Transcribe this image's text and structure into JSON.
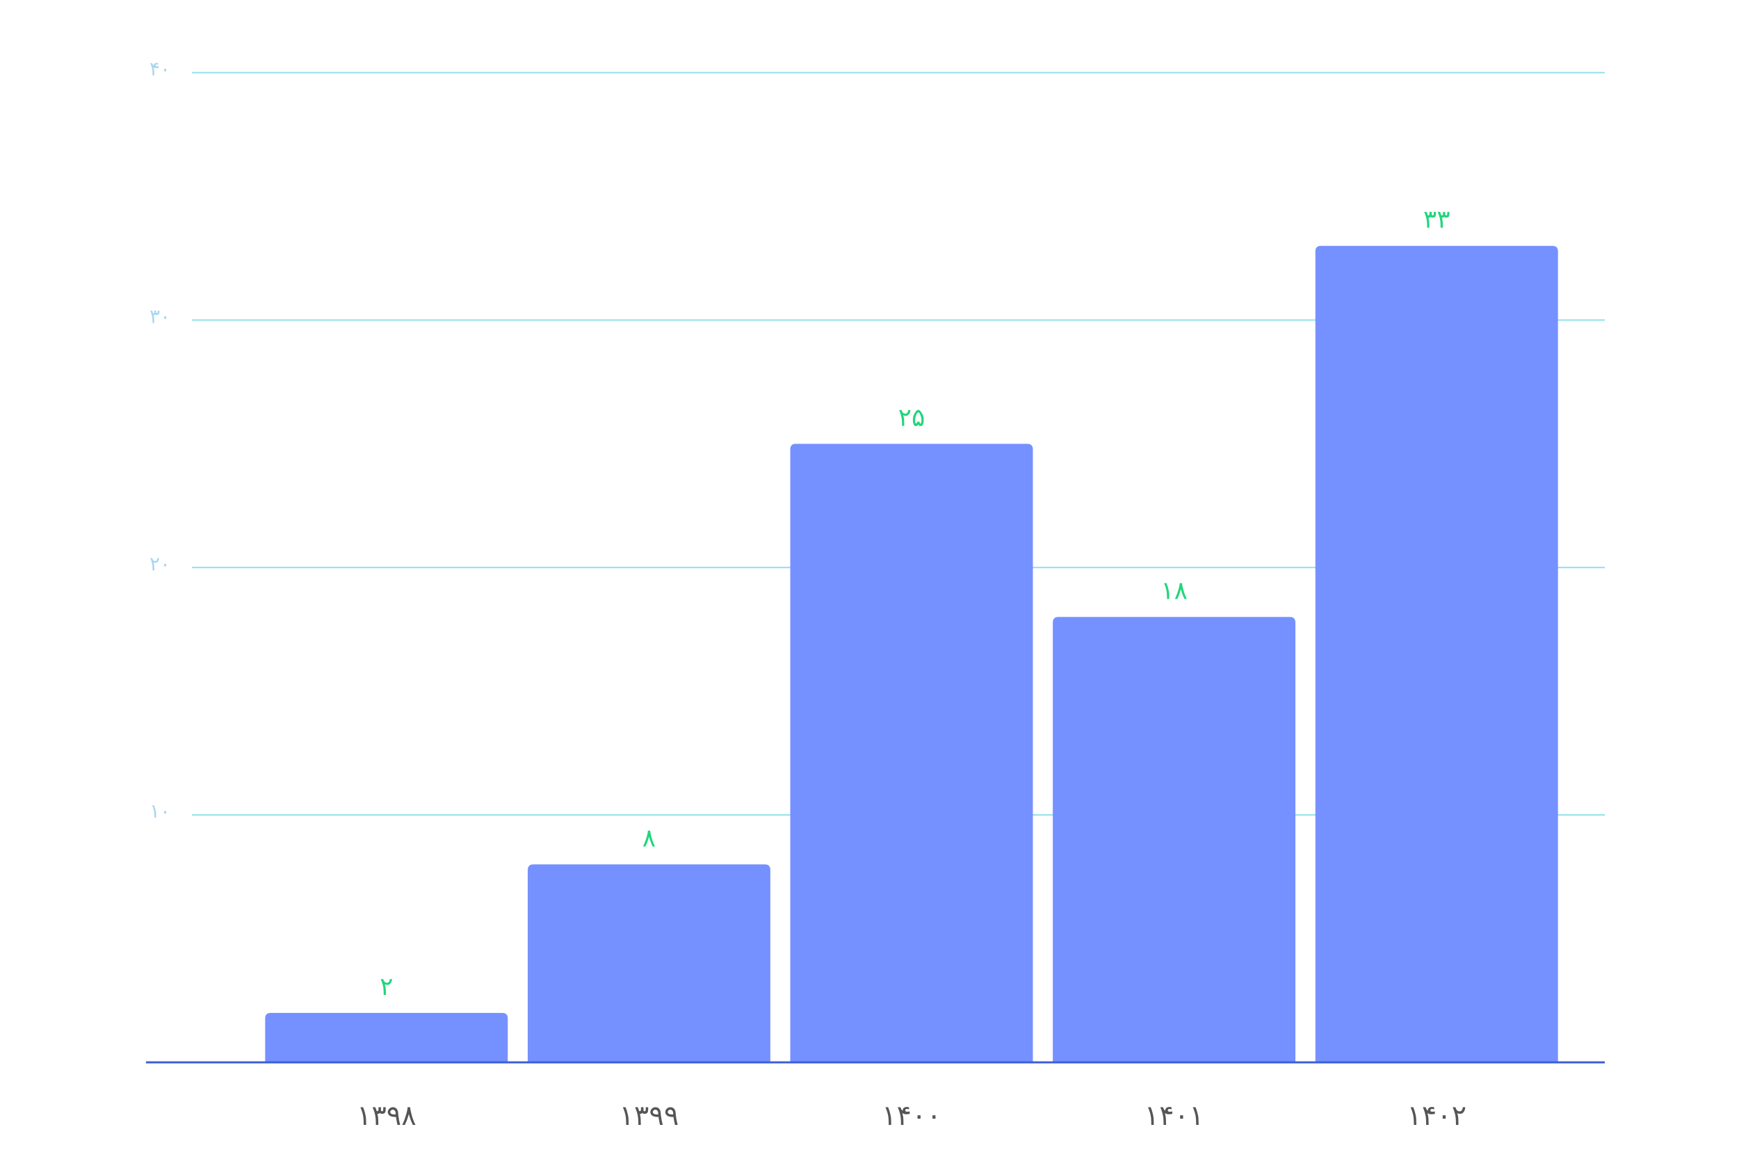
{
  "chart_data": {
    "type": "bar",
    "categories": [
      "۱۳۹۸",
      "۱۳۹۹",
      "۱۴۰۰",
      "۱۴۰۱",
      "۱۴۰۲"
    ],
    "values": [
      2,
      8,
      25,
      18,
      33
    ],
    "value_labels": [
      "۲",
      "۸",
      "۲۵",
      "۱۸",
      "۳۳"
    ],
    "color": "#7590ff",
    "ylim": [
      0,
      40
    ],
    "yticks": [
      {
        "value": 10,
        "label": "۱۰"
      },
      {
        "value": 20,
        "label": "۲۰"
      },
      {
        "value": 30,
        "label": "۳۰"
      },
      {
        "value": 40,
        "label": "۴۰"
      }
    ],
    "grid": true
  }
}
